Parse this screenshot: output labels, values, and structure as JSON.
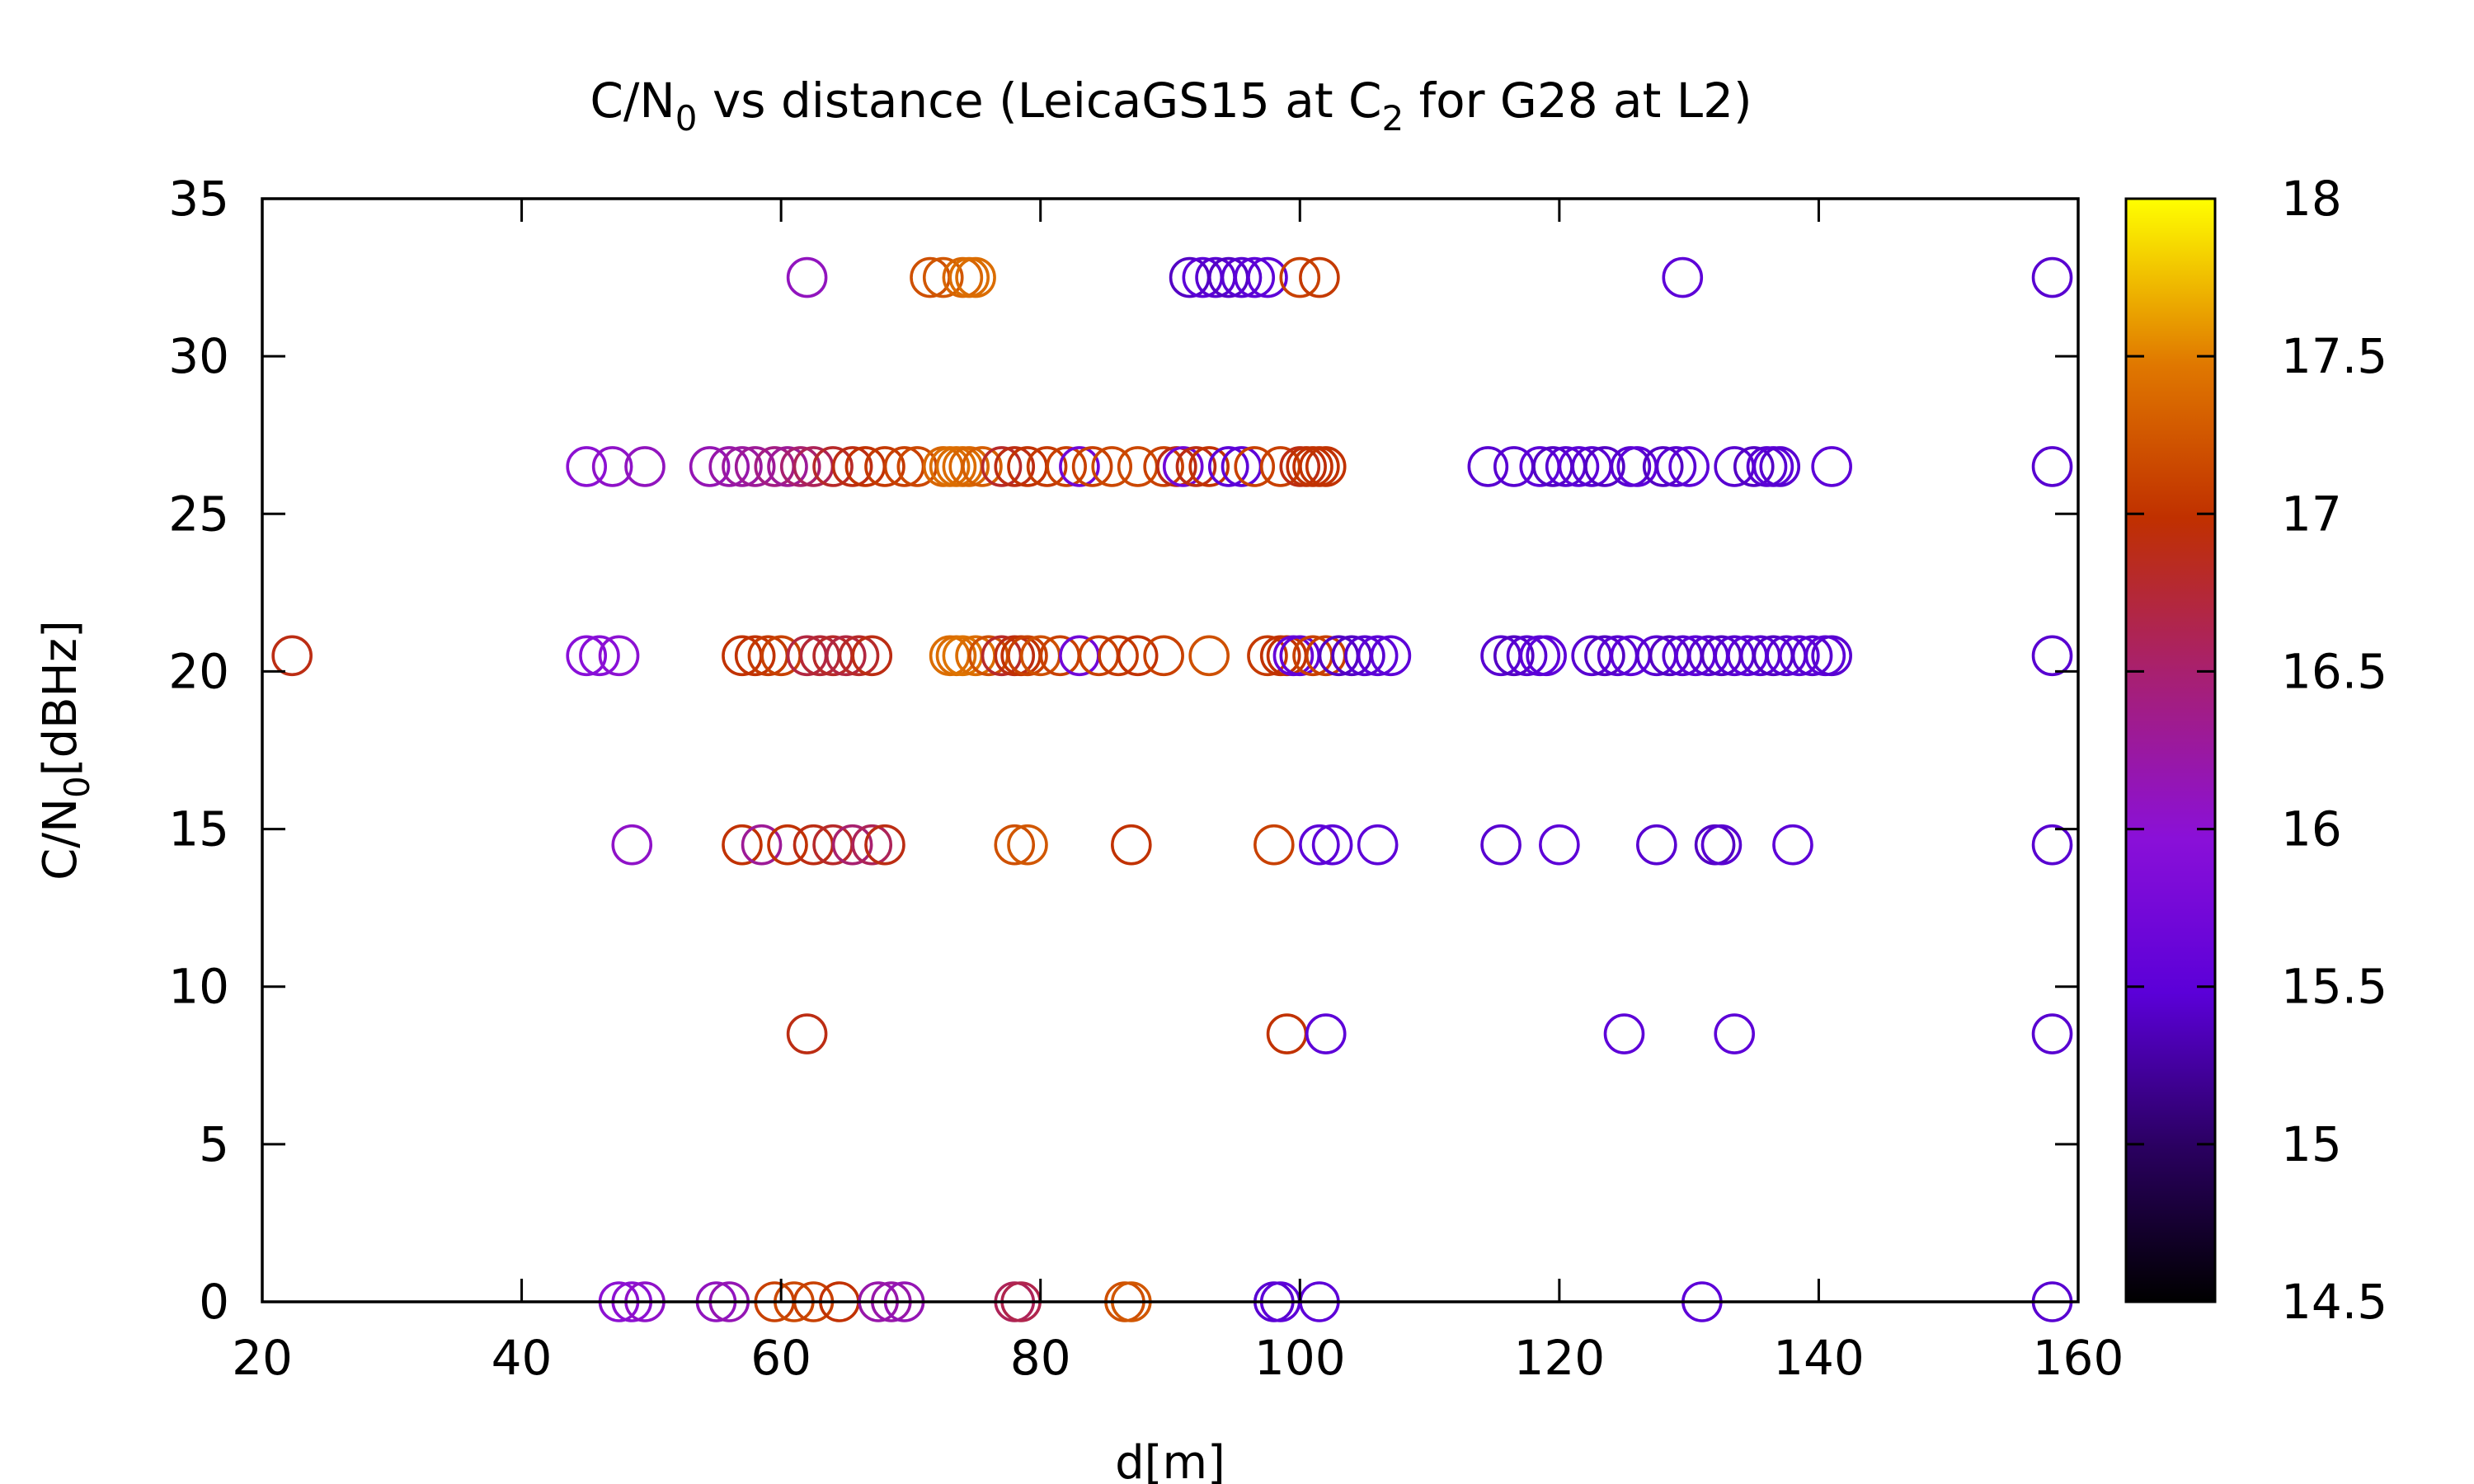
{
  "chart_data": {
    "type": "scatter",
    "title": {
      "text_main": "C/N",
      "text_sub": "0",
      "text_mid": " vs distance (LeicaGS15 at C",
      "text_sub2": "2",
      "text_end": " for G28 at L2)"
    },
    "xlabel": "d[m]",
    "ylabel": {
      "text_main": "C/N",
      "text_sub": "0",
      "text_end": "[dBHz]"
    },
    "xlim": [
      20,
      160
    ],
    "ylim": [
      0,
      35
    ],
    "xticks": [
      20,
      40,
      60,
      80,
      100,
      120,
      140,
      160
    ],
    "yticks": [
      0,
      5,
      10,
      15,
      20,
      25,
      30,
      35
    ],
    "colorbar": {
      "range": [
        14.5,
        18
      ],
      "ticks": [
        "14.5",
        "15",
        "15.5",
        "16",
        "16.5",
        "17",
        "17.5",
        "18"
      ],
      "palette": "gnuplot default (black - blue - purple - red - orange - yellow)"
    },
    "marker": "open circle",
    "grid": false,
    "legend": "none",
    "points": [
      {
        "x": 22.3,
        "y": 20.5,
        "c": 16.9
      },
      {
        "x": 45.0,
        "y": 20.5,
        "c": 15.95
      },
      {
        "x": 46.0,
        "y": 20.5,
        "c": 15.95
      },
      {
        "x": 47.5,
        "y": 20.5,
        "c": 16.0
      },
      {
        "x": 45.0,
        "y": 26.5,
        "c": 16.0
      },
      {
        "x": 47.0,
        "y": 26.5,
        "c": 16.05
      },
      {
        "x": 49.5,
        "y": 26.5,
        "c": 16.1
      },
      {
        "x": 48.5,
        "y": 14.5,
        "c": 16.05
      },
      {
        "x": 47.5,
        "y": 0,
        "c": 16.0
      },
      {
        "x": 48.5,
        "y": 0,
        "c": 16.0
      },
      {
        "x": 49.5,
        "y": 0,
        "c": 16.05
      },
      {
        "x": 54.5,
        "y": 26.5,
        "c": 16.15
      },
      {
        "x": 56.0,
        "y": 26.5,
        "c": 16.2
      },
      {
        "x": 57.0,
        "y": 26.5,
        "c": 16.25
      },
      {
        "x": 58.0,
        "y": 26.5,
        "c": 16.3
      },
      {
        "x": 59.5,
        "y": 26.5,
        "c": 16.4
      },
      {
        "x": 60.5,
        "y": 26.5,
        "c": 16.3
      },
      {
        "x": 61.5,
        "y": 26.5,
        "c": 16.5
      },
      {
        "x": 62.5,
        "y": 26.5,
        "c": 16.6
      },
      {
        "x": 64.0,
        "y": 26.5,
        "c": 16.8
      },
      {
        "x": 65.5,
        "y": 26.5,
        "c": 16.9
      },
      {
        "x": 66.5,
        "y": 26.5,
        "c": 17.0
      },
      {
        "x": 68.0,
        "y": 26.5,
        "c": 17.05
      },
      {
        "x": 69.5,
        "y": 26.5,
        "c": 17.1
      },
      {
        "x": 70.5,
        "y": 26.5,
        "c": 17.15
      },
      {
        "x": 72.5,
        "y": 26.5,
        "c": 17.35
      },
      {
        "x": 73.0,
        "y": 26.5,
        "c": 17.4
      },
      {
        "x": 73.5,
        "y": 26.5,
        "c": 17.4
      },
      {
        "x": 74.0,
        "y": 26.5,
        "c": 17.4
      },
      {
        "x": 74.5,
        "y": 26.5,
        "c": 17.35
      },
      {
        "x": 75.5,
        "y": 26.5,
        "c": 17.3
      },
      {
        "x": 77.0,
        "y": 26.5,
        "c": 16.8
      },
      {
        "x": 78.0,
        "y": 26.5,
        "c": 16.9
      },
      {
        "x": 79.0,
        "y": 26.5,
        "c": 17.0
      },
      {
        "x": 80.5,
        "y": 26.5,
        "c": 17.05
      },
      {
        "x": 82.0,
        "y": 26.5,
        "c": 17.1
      },
      {
        "x": 83.0,
        "y": 26.5,
        "c": 15.7
      },
      {
        "x": 84.0,
        "y": 26.5,
        "c": 17.1
      },
      {
        "x": 85.5,
        "y": 26.5,
        "c": 17.15
      },
      {
        "x": 87.5,
        "y": 26.5,
        "c": 17.15
      },
      {
        "x": 89.5,
        "y": 26.5,
        "c": 17.1
      },
      {
        "x": 90.5,
        "y": 26.5,
        "c": 16.9
      },
      {
        "x": 91.0,
        "y": 26.5,
        "c": 15.7
      },
      {
        "x": 92.0,
        "y": 26.5,
        "c": 16.9
      },
      {
        "x": 93.0,
        "y": 26.5,
        "c": 17.0
      },
      {
        "x": 94.5,
        "y": 26.5,
        "c": 15.5
      },
      {
        "x": 95.5,
        "y": 26.5,
        "c": 15.5
      },
      {
        "x": 96.5,
        "y": 26.5,
        "c": 17.1
      },
      {
        "x": 98.5,
        "y": 26.5,
        "c": 17.1
      },
      {
        "x": 100.0,
        "y": 26.5,
        "c": 16.9
      },
      {
        "x": 100.5,
        "y": 26.5,
        "c": 16.95
      },
      {
        "x": 101.0,
        "y": 26.5,
        "c": 17.0
      },
      {
        "x": 101.5,
        "y": 26.5,
        "c": 17.0
      },
      {
        "x": 102.0,
        "y": 26.5,
        "c": 17.0
      },
      {
        "x": 57.0,
        "y": 20.5,
        "c": 17.0
      },
      {
        "x": 58.0,
        "y": 20.5,
        "c": 17.0
      },
      {
        "x": 59.0,
        "y": 20.5,
        "c": 17.05
      },
      {
        "x": 60.0,
        "y": 20.5,
        "c": 17.1
      },
      {
        "x": 62.0,
        "y": 20.5,
        "c": 16.7
      },
      {
        "x": 63.0,
        "y": 20.5,
        "c": 16.75
      },
      {
        "x": 64.0,
        "y": 20.5,
        "c": 16.8
      },
      {
        "x": 65.0,
        "y": 20.5,
        "c": 16.7
      },
      {
        "x": 66.0,
        "y": 20.5,
        "c": 16.8
      },
      {
        "x": 67.0,
        "y": 20.5,
        "c": 16.9
      },
      {
        "x": 73.0,
        "y": 20.5,
        "c": 17.4
      },
      {
        "x": 73.5,
        "y": 20.5,
        "c": 17.4
      },
      {
        "x": 74.0,
        "y": 20.5,
        "c": 17.45
      },
      {
        "x": 75.0,
        "y": 20.5,
        "c": 17.4
      },
      {
        "x": 76.0,
        "y": 20.5,
        "c": 17.2
      },
      {
        "x": 77.0,
        "y": 20.5,
        "c": 16.8
      },
      {
        "x": 78.0,
        "y": 20.5,
        "c": 16.9
      },
      {
        "x": 78.5,
        "y": 20.5,
        "c": 17.0
      },
      {
        "x": 79.0,
        "y": 20.5,
        "c": 17.1
      },
      {
        "x": 80.0,
        "y": 20.5,
        "c": 17.2
      },
      {
        "x": 81.5,
        "y": 20.5,
        "c": 17.1
      },
      {
        "x": 83.0,
        "y": 20.5,
        "c": 15.7
      },
      {
        "x": 84.5,
        "y": 20.5,
        "c": 17.1
      },
      {
        "x": 86.0,
        "y": 20.5,
        "c": 17.05
      },
      {
        "x": 87.5,
        "y": 20.5,
        "c": 17.0
      },
      {
        "x": 89.5,
        "y": 20.5,
        "c": 17.1
      },
      {
        "x": 93.0,
        "y": 20.5,
        "c": 17.2
      },
      {
        "x": 97.5,
        "y": 20.5,
        "c": 17.05
      },
      {
        "x": 98.5,
        "y": 20.5,
        "c": 17.0
      },
      {
        "x": 99.0,
        "y": 20.5,
        "c": 17.0
      },
      {
        "x": 99.5,
        "y": 20.5,
        "c": 15.6
      },
      {
        "x": 100.0,
        "y": 20.5,
        "c": 15.55
      },
      {
        "x": 101.0,
        "y": 20.5,
        "c": 17.1
      },
      {
        "x": 102.0,
        "y": 20.5,
        "c": 17.1
      },
      {
        "x": 103.0,
        "y": 20.5,
        "c": 15.4
      },
      {
        "x": 104.0,
        "y": 20.5,
        "c": 15.4
      },
      {
        "x": 105.0,
        "y": 20.5,
        "c": 15.45
      },
      {
        "x": 106.0,
        "y": 20.5,
        "c": 15.5
      },
      {
        "x": 107.0,
        "y": 20.5,
        "c": 15.5
      },
      {
        "x": 62.0,
        "y": 32.5,
        "c": 16.1
      },
      {
        "x": 71.5,
        "y": 32.5,
        "c": 17.2
      },
      {
        "x": 72.5,
        "y": 32.5,
        "c": 17.25
      },
      {
        "x": 74.0,
        "y": 32.5,
        "c": 17.35
      },
      {
        "x": 74.5,
        "y": 32.5,
        "c": 17.4
      },
      {
        "x": 75.0,
        "y": 32.5,
        "c": 17.4
      },
      {
        "x": 91.5,
        "y": 32.5,
        "c": 15.4
      },
      {
        "x": 92.5,
        "y": 32.5,
        "c": 15.5
      },
      {
        "x": 93.5,
        "y": 32.5,
        "c": 15.45
      },
      {
        "x": 94.5,
        "y": 32.5,
        "c": 15.4
      },
      {
        "x": 95.5,
        "y": 32.5,
        "c": 15.45
      },
      {
        "x": 96.5,
        "y": 32.5,
        "c": 15.5
      },
      {
        "x": 97.5,
        "y": 32.5,
        "c": 15.5
      },
      {
        "x": 100.0,
        "y": 32.5,
        "c": 17.1
      },
      {
        "x": 101.5,
        "y": 32.5,
        "c": 17.05
      },
      {
        "x": 57.0,
        "y": 14.5,
        "c": 17.0
      },
      {
        "x": 58.5,
        "y": 14.5,
        "c": 16.3
      },
      {
        "x": 60.5,
        "y": 14.5,
        "c": 17.0
      },
      {
        "x": 62.5,
        "y": 14.5,
        "c": 16.9
      },
      {
        "x": 64.0,
        "y": 14.5,
        "c": 16.8
      },
      {
        "x": 65.5,
        "y": 14.5,
        "c": 16.5
      },
      {
        "x": 67.0,
        "y": 14.5,
        "c": 16.6
      },
      {
        "x": 68.0,
        "y": 14.5,
        "c": 16.9
      },
      {
        "x": 78.0,
        "y": 14.5,
        "c": 17.2
      },
      {
        "x": 79.0,
        "y": 14.5,
        "c": 17.25
      },
      {
        "x": 87.0,
        "y": 14.5,
        "c": 17.0
      },
      {
        "x": 98.0,
        "y": 14.5,
        "c": 17.1
      },
      {
        "x": 101.5,
        "y": 14.5,
        "c": 15.5
      },
      {
        "x": 102.5,
        "y": 14.5,
        "c": 15.5
      },
      {
        "x": 106.0,
        "y": 14.5,
        "c": 15.5
      },
      {
        "x": 62.0,
        "y": 8.5,
        "c": 16.9
      },
      {
        "x": 99.0,
        "y": 8.5,
        "c": 17.0
      },
      {
        "x": 102.0,
        "y": 8.5,
        "c": 15.5
      },
      {
        "x": 55.0,
        "y": 0,
        "c": 16.1
      },
      {
        "x": 56.0,
        "y": 0,
        "c": 16.15
      },
      {
        "x": 59.5,
        "y": 0,
        "c": 17.1
      },
      {
        "x": 61.0,
        "y": 0,
        "c": 17.15
      },
      {
        "x": 62.5,
        "y": 0,
        "c": 17.1
      },
      {
        "x": 64.5,
        "y": 0,
        "c": 17.0
      },
      {
        "x": 67.5,
        "y": 0,
        "c": 16.2
      },
      {
        "x": 68.5,
        "y": 0,
        "c": 16.2
      },
      {
        "x": 69.5,
        "y": 0,
        "c": 16.15
      },
      {
        "x": 78.0,
        "y": 0,
        "c": 16.6
      },
      {
        "x": 78.5,
        "y": 0,
        "c": 16.65
      },
      {
        "x": 86.5,
        "y": 0,
        "c": 17.2
      },
      {
        "x": 87.0,
        "y": 0,
        "c": 17.25
      },
      {
        "x": 98.0,
        "y": 0,
        "c": 15.45
      },
      {
        "x": 98.5,
        "y": 0,
        "c": 15.5
      },
      {
        "x": 101.5,
        "y": 0,
        "c": 15.5
      },
      {
        "x": 114.5,
        "y": 26.5,
        "c": 15.45
      },
      {
        "x": 116.5,
        "y": 26.5,
        "c": 15.45
      },
      {
        "x": 118.5,
        "y": 26.5,
        "c": 15.5
      },
      {
        "x": 119.5,
        "y": 26.5,
        "c": 15.4
      },
      {
        "x": 120.5,
        "y": 26.5,
        "c": 15.45
      },
      {
        "x": 121.5,
        "y": 26.5,
        "c": 15.5
      },
      {
        "x": 122.5,
        "y": 26.5,
        "c": 15.45
      },
      {
        "x": 123.5,
        "y": 26.5,
        "c": 15.4
      },
      {
        "x": 125.5,
        "y": 26.5,
        "c": 15.45
      },
      {
        "x": 126.0,
        "y": 26.5,
        "c": 15.5
      },
      {
        "x": 128.0,
        "y": 26.5,
        "c": 15.4
      },
      {
        "x": 129.0,
        "y": 26.5,
        "c": 15.45
      },
      {
        "x": 130.0,
        "y": 26.5,
        "c": 15.5
      },
      {
        "x": 133.5,
        "y": 26.5,
        "c": 15.45
      },
      {
        "x": 135.0,
        "y": 26.5,
        "c": 15.4
      },
      {
        "x": 136.0,
        "y": 26.5,
        "c": 15.45
      },
      {
        "x": 136.5,
        "y": 26.5,
        "c": 15.5
      },
      {
        "x": 137.0,
        "y": 26.5,
        "c": 15.45
      },
      {
        "x": 141.0,
        "y": 26.5,
        "c": 15.5
      },
      {
        "x": 115.5,
        "y": 20.5,
        "c": 15.45
      },
      {
        "x": 116.5,
        "y": 20.5,
        "c": 15.4
      },
      {
        "x": 117.5,
        "y": 20.5,
        "c": 15.45
      },
      {
        "x": 118.5,
        "y": 20.5,
        "c": 15.5
      },
      {
        "x": 119.0,
        "y": 20.5,
        "c": 15.5
      },
      {
        "x": 122.5,
        "y": 20.5,
        "c": 15.45
      },
      {
        "x": 123.5,
        "y": 20.5,
        "c": 15.4
      },
      {
        "x": 124.5,
        "y": 20.5,
        "c": 15.45
      },
      {
        "x": 125.5,
        "y": 20.5,
        "c": 15.5
      },
      {
        "x": 127.5,
        "y": 20.5,
        "c": 15.45
      },
      {
        "x": 128.5,
        "y": 20.5,
        "c": 15.4
      },
      {
        "x": 129.5,
        "y": 20.5,
        "c": 15.45
      },
      {
        "x": 130.5,
        "y": 20.5,
        "c": 15.5
      },
      {
        "x": 131.5,
        "y": 20.5,
        "c": 15.45
      },
      {
        "x": 132.5,
        "y": 20.5,
        "c": 15.4
      },
      {
        "x": 133.5,
        "y": 20.5,
        "c": 15.45
      },
      {
        "x": 134.5,
        "y": 20.5,
        "c": 15.5
      },
      {
        "x": 135.5,
        "y": 20.5,
        "c": 15.45
      },
      {
        "x": 136.5,
        "y": 20.5,
        "c": 15.4
      },
      {
        "x": 137.5,
        "y": 20.5,
        "c": 15.45
      },
      {
        "x": 138.5,
        "y": 20.5,
        "c": 15.5
      },
      {
        "x": 139.5,
        "y": 20.5,
        "c": 15.45
      },
      {
        "x": 140.5,
        "y": 20.5,
        "c": 15.5
      },
      {
        "x": 141.0,
        "y": 20.5,
        "c": 15.45
      },
      {
        "x": 129.5,
        "y": 32.5,
        "c": 15.5
      },
      {
        "x": 115.5,
        "y": 14.5,
        "c": 15.45
      },
      {
        "x": 120.0,
        "y": 14.5,
        "c": 15.5
      },
      {
        "x": 127.5,
        "y": 14.5,
        "c": 15.45
      },
      {
        "x": 132.0,
        "y": 14.5,
        "c": 15.4
      },
      {
        "x": 132.5,
        "y": 14.5,
        "c": 15.45
      },
      {
        "x": 138.0,
        "y": 14.5,
        "c": 15.5
      },
      {
        "x": 125.0,
        "y": 8.5,
        "c": 15.5
      },
      {
        "x": 133.5,
        "y": 8.5,
        "c": 15.5
      },
      {
        "x": 131.0,
        "y": 0,
        "c": 15.5
      },
      {
        "x": 158.0,
        "y": 32.5,
        "c": 15.45
      },
      {
        "x": 158.0,
        "y": 26.5,
        "c": 15.45
      },
      {
        "x": 158.0,
        "y": 20.5,
        "c": 15.45
      },
      {
        "x": 158.0,
        "y": 14.5,
        "c": 15.45
      },
      {
        "x": 158.0,
        "y": 8.5,
        "c": 15.45
      },
      {
        "x": 158.0,
        "y": 0,
        "c": 15.45
      }
    ]
  }
}
